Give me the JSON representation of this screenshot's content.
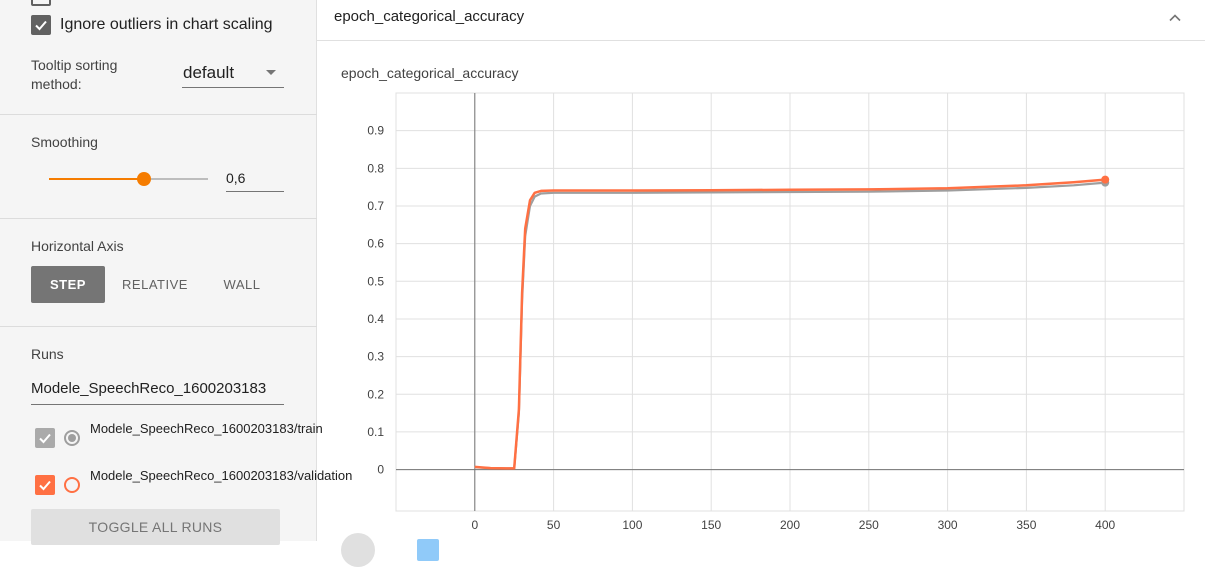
{
  "sidebar": {
    "ignore_outliers_label": "Ignore outliers in chart scaling",
    "tooltip_sorting_label": "Tooltip sorting method:",
    "tooltip_sorting_value": "default",
    "smoothing_label": "Smoothing",
    "smoothing_value": "0,6",
    "smoothing_fraction": 0.6,
    "horizontal_axis_label": "Horizontal Axis",
    "axis_options": [
      "STEP",
      "RELATIVE",
      "WALL"
    ],
    "runs_label": "Runs",
    "runs_filter_value": "Modele_SpeechReco_1600203183",
    "runs": [
      {
        "label": "Modele_SpeechReco_1600203183/train",
        "color": "#9e9e9e",
        "checked": true
      },
      {
        "label": "Modele_SpeechReco_1600203183/validation",
        "color": "#ff7043",
        "checked": true
      }
    ],
    "toggle_all_label": "TOGGLE ALL RUNS"
  },
  "card": {
    "title": "epoch_categorical_accuracy"
  },
  "chart_data": {
    "type": "line",
    "title": "epoch_categorical_accuracy",
    "xlim": [
      -50,
      450
    ],
    "ylim": [
      -0.11,
      1.0
    ],
    "x_ticks": [
      0,
      50,
      100,
      150,
      200,
      250,
      300,
      350,
      400
    ],
    "y_ticks": [
      0,
      0.1,
      0.2,
      0.3,
      0.4,
      0.5,
      0.6,
      0.7,
      0.8,
      0.9
    ],
    "y_tick_labels": [
      "0",
      "0.1",
      "0.2",
      "0.3",
      "0.4",
      "0.5",
      "0.6",
      "0.7",
      "0.8",
      "0.9"
    ],
    "grid": true,
    "series": [
      {
        "color": "#9e9e9e",
        "x": [
          0,
          10,
          20,
          25,
          28,
          30,
          32,
          35,
          38,
          42,
          50,
          100,
          150,
          200,
          250,
          300,
          350,
          380,
          400
        ],
        "y": [
          0.006,
          0.004,
          0.003,
          0.003,
          0.15,
          0.45,
          0.62,
          0.7,
          0.725,
          0.733,
          0.735,
          0.735,
          0.736,
          0.737,
          0.738,
          0.741,
          0.748,
          0.755,
          0.762
        ]
      },
      {
        "color": "#ff7043",
        "x": [
          0,
          10,
          20,
          25,
          28,
          30,
          32,
          35,
          38,
          42,
          50,
          100,
          150,
          200,
          250,
          300,
          350,
          380,
          400
        ],
        "y": [
          0.007,
          0.004,
          0.003,
          0.003,
          0.16,
          0.47,
          0.64,
          0.715,
          0.735,
          0.74,
          0.741,
          0.741,
          0.742,
          0.743,
          0.744,
          0.747,
          0.755,
          0.763,
          0.77
        ]
      }
    ]
  }
}
